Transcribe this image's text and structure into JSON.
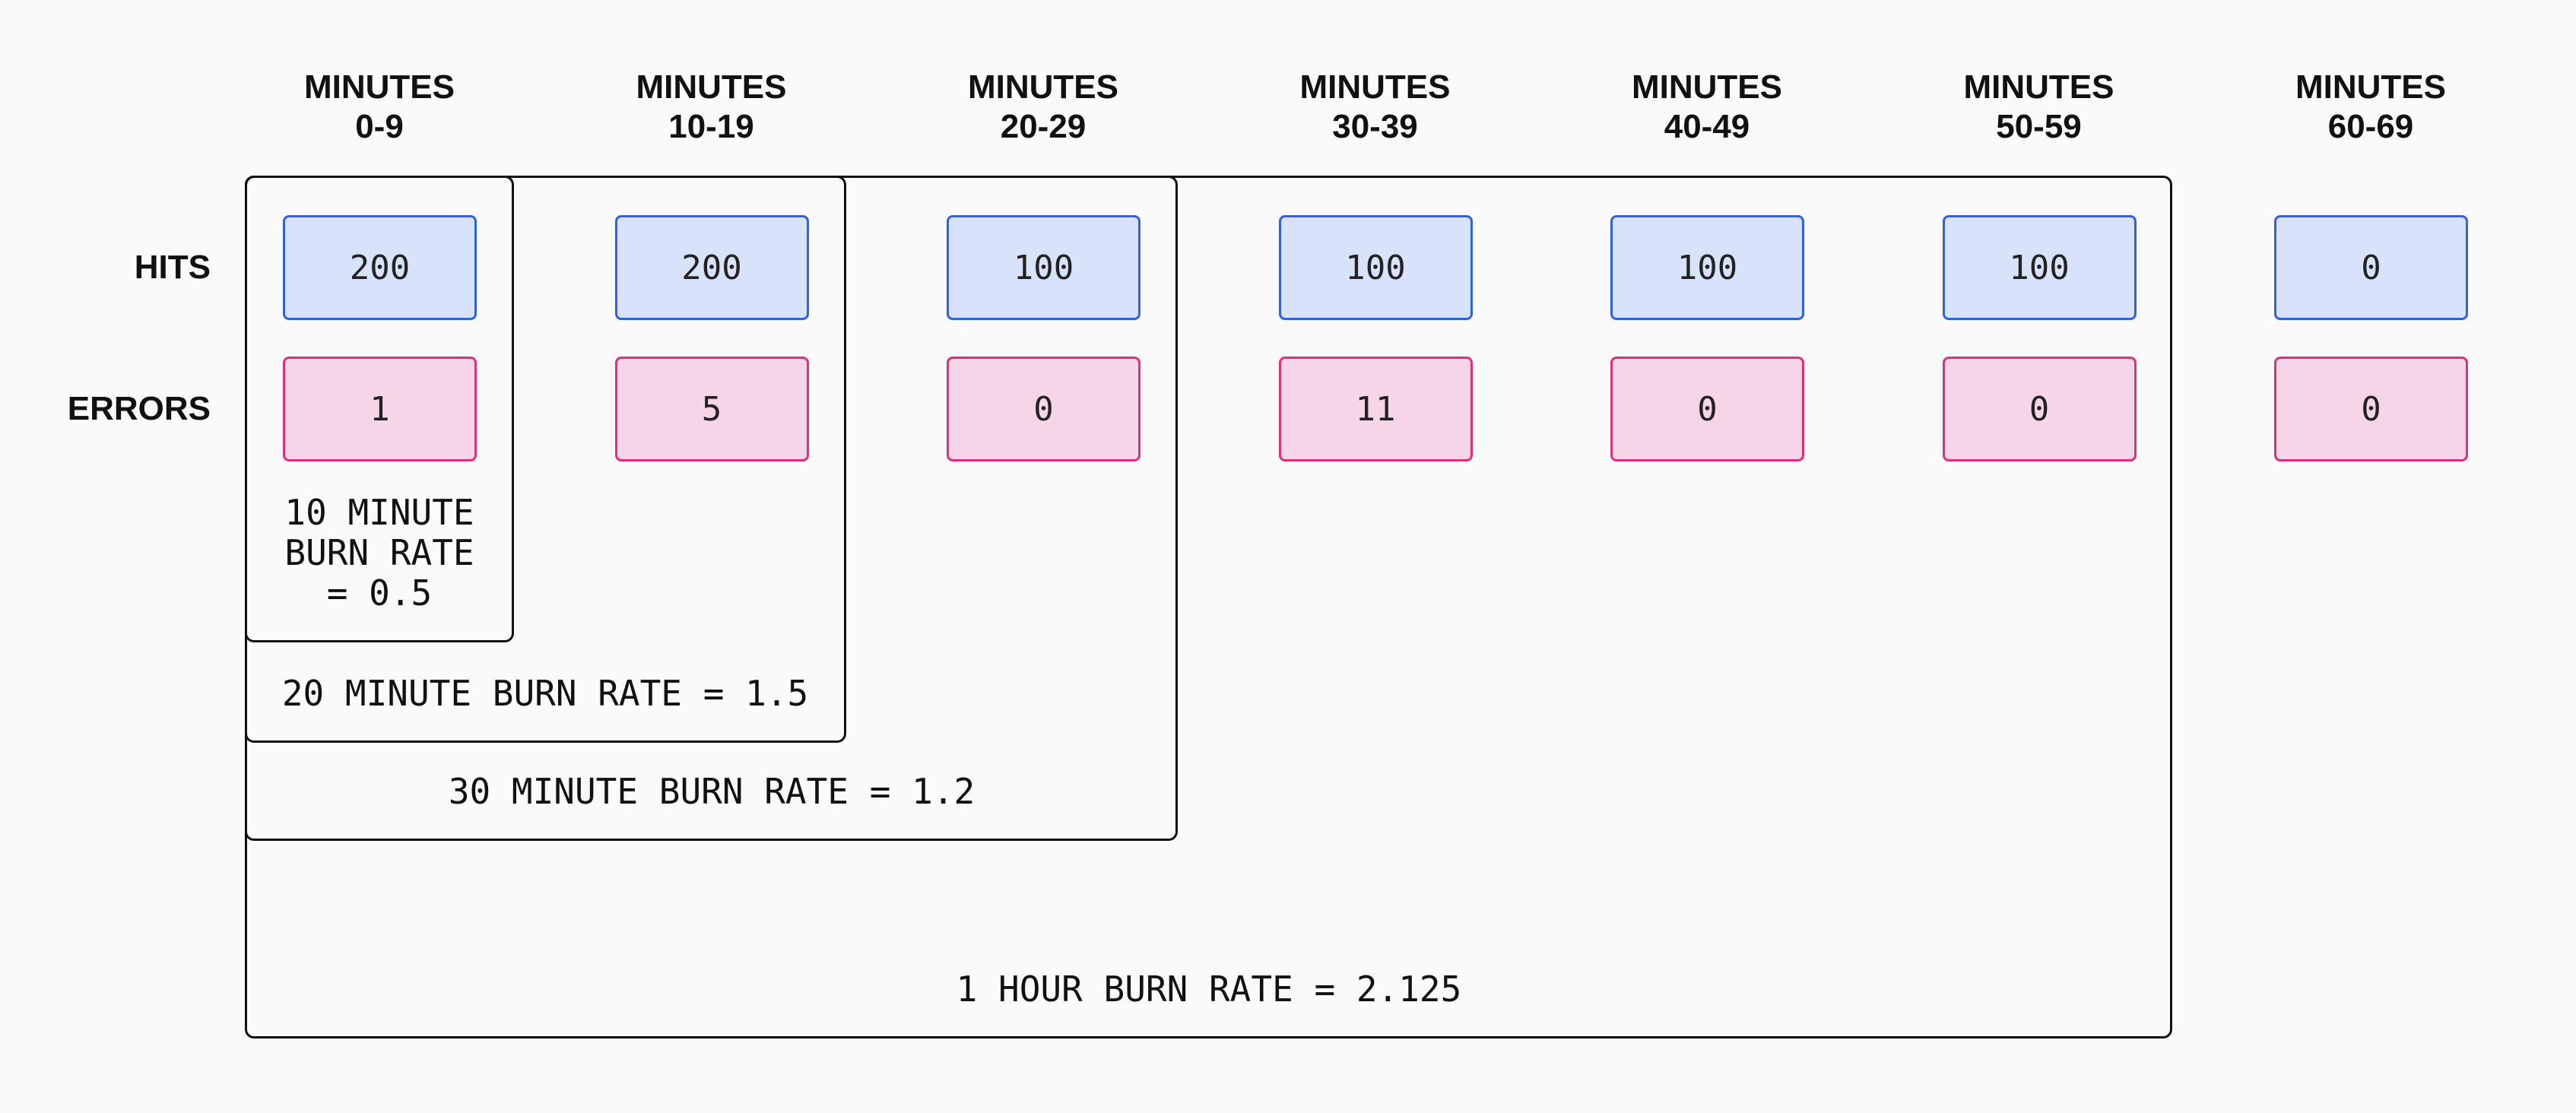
{
  "columns": [
    {
      "header": [
        "MINUTES",
        "0-9"
      ]
    },
    {
      "header": [
        "MINUTES",
        "10-19"
      ]
    },
    {
      "header": [
        "MINUTES",
        "20-29"
      ]
    },
    {
      "header": [
        "MINUTES",
        "30-39"
      ]
    },
    {
      "header": [
        "MINUTES",
        "40-49"
      ]
    },
    {
      "header": [
        "MINUTES",
        "50-59"
      ]
    },
    {
      "header": [
        "MINUTES",
        "60-69"
      ]
    }
  ],
  "rows": [
    {
      "label": "HITS",
      "values": [
        "200",
        "200",
        "100",
        "100",
        "100",
        "100",
        "0"
      ]
    },
    {
      "label": "ERRORS",
      "values": [
        "1",
        "5",
        "0",
        "11",
        "0",
        "0",
        "0"
      ]
    }
  ],
  "burn_rates": [
    {
      "lines": [
        "10 MINUTE",
        "BURN RATE",
        "= 0.5"
      ]
    },
    {
      "lines": [
        "20 MINUTE BURN RATE = 1.5"
      ]
    },
    {
      "lines": [
        "30 MINUTE BURN RATE = 1.2"
      ]
    },
    {
      "lines": [
        "1 HOUR BURN RATE = 2.125"
      ]
    }
  ]
}
